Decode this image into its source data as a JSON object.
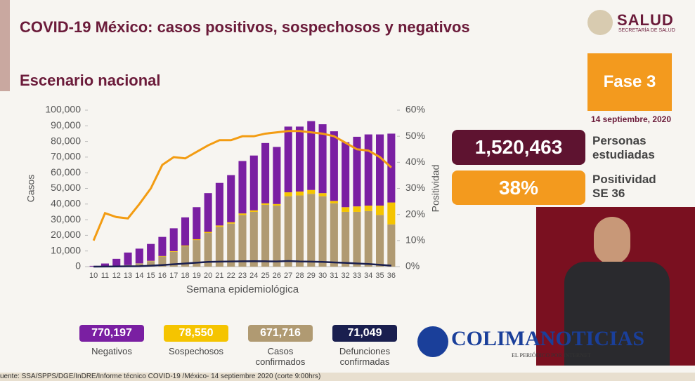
{
  "header": {
    "title": "COVID-19 México: casos positivos, sospechosos y negativos",
    "subtitle": "Escenario nacional",
    "logo": "SALUD",
    "logo_sub": "SECRETARÍA DE SALUD"
  },
  "panel": {
    "phase": "Fase 3",
    "date": "14 septiembre, 2020",
    "studied": "1,520,463",
    "studied_label": "Personas estudiadas",
    "positivity": "38%",
    "positivity_label": "Positividad SE 36"
  },
  "watermark": {
    "name": "COLIMANOTICIAS",
    "tagline": "EL PERIÓDICO POR INTERNET"
  },
  "source": "uente: SSA/SPPS/DGE/InDRE/Informe técnico COVID-19 /México- 14 septiembre 2020 (corte 9:00hrs)",
  "chart_data": {
    "type": "bar",
    "stacked": true,
    "x_label": "Semana epidemiológica",
    "y_label": "Casos",
    "y2_label": "Positividad",
    "categories": [
      "10",
      "11",
      "12",
      "13",
      "14",
      "15",
      "16",
      "17",
      "18",
      "19",
      "20",
      "21",
      "22",
      "23",
      "24",
      "25",
      "26",
      "27",
      "28",
      "29",
      "30",
      "31",
      "32",
      "33",
      "34",
      "35",
      "36"
    ],
    "ylim": [
      0,
      100000
    ],
    "yticks": [
      0,
      {
        "value": 10000,
        "label": "10,000"
      },
      {
        "value": 20000,
        "label": "20,000"
      },
      {
        "value": 30000,
        "label": "30,000"
      },
      {
        "value": 40000,
        "label": "40,000"
      },
      {
        "value": 50000,
        "label": "50,000"
      },
      {
        "value": 60000,
        "label": "60,000"
      },
      {
        "value": 70000,
        "label": "70,000"
      },
      {
        "value": 80000,
        "label": "80,000"
      },
      {
        "value": 90000,
        "label": "90,000"
      },
      {
        "value": 100000,
        "label": "100,000"
      }
    ],
    "y2lim": [
      0,
      60
    ],
    "y2ticks": [
      {
        "value": 0,
        "label": "0%"
      },
      {
        "value": 10,
        "label": "10%"
      },
      {
        "value": 20,
        "label": "20%"
      },
      {
        "value": 30,
        "label": "30%"
      },
      {
        "value": 40,
        "label": "40%"
      },
      {
        "value": 50,
        "label": "50%"
      },
      {
        "value": 60,
        "label": "60%"
      }
    ],
    "series": [
      {
        "name": "Negativos",
        "total": "770,197",
        "type": "bar",
        "color": "#7a1fa2",
        "values": [
          450,
          1800,
          4500,
          8000,
          9400,
          10800,
          12200,
          14600,
          18000,
          20500,
          24800,
          27200,
          30100,
          33500,
          35000,
          38500,
          36500,
          42000,
          41500,
          44000,
          44000,
          44500,
          41500,
          44500,
          45500,
          45500,
          44000
        ]
      },
      {
        "name": "Sospechosos",
        "total": "78,550",
        "type": "bar",
        "color": "#f5c400",
        "values": [
          0,
          0,
          0,
          0,
          100,
          200,
          300,
          400,
          500,
          500,
          700,
          800,
          900,
          1000,
          1000,
          1000,
          1000,
          2500,
          2500,
          2500,
          2000,
          1500,
          3000,
          3500,
          3500,
          6000,
          14000
        ]
      },
      {
        "name": "Casos confirmados",
        "total": "671,716",
        "type": "bar",
        "color": "#b09a72",
        "values": [
          50,
          200,
          500,
          1000,
          2000,
          3500,
          6500,
          9500,
          13000,
          17000,
          21500,
          25500,
          27500,
          33000,
          35000,
          39500,
          39000,
          45000,
          45500,
          46500,
          45000,
          40500,
          35000,
          35000,
          35500,
          33000,
          27000
        ]
      },
      {
        "name": "Defunciones confirmadas",
        "total": "71,049",
        "type": "line",
        "color": "#1a1f4f",
        "values": [
          0,
          50,
          100,
          200,
          300,
          600,
          1000,
          1500,
          2000,
          2500,
          3000,
          3200,
          3300,
          3400,
          3500,
          3400,
          3300,
          3600,
          3300,
          3200,
          3000,
          2700,
          2400,
          2000,
          1700,
          1200,
          600
        ]
      },
      {
        "type": "line",
        "axis": "y2",
        "color": "#f39c12",
        "values": [
          10,
          20.5,
          19,
          18.5,
          24,
          30,
          39,
          42,
          41.5,
          44,
          46.5,
          48.5,
          48.5,
          50,
          50,
          51,
          51.5,
          52,
          52,
          51.5,
          51,
          50,
          47.5,
          45,
          44.5,
          42,
          38
        ]
      }
    ]
  }
}
